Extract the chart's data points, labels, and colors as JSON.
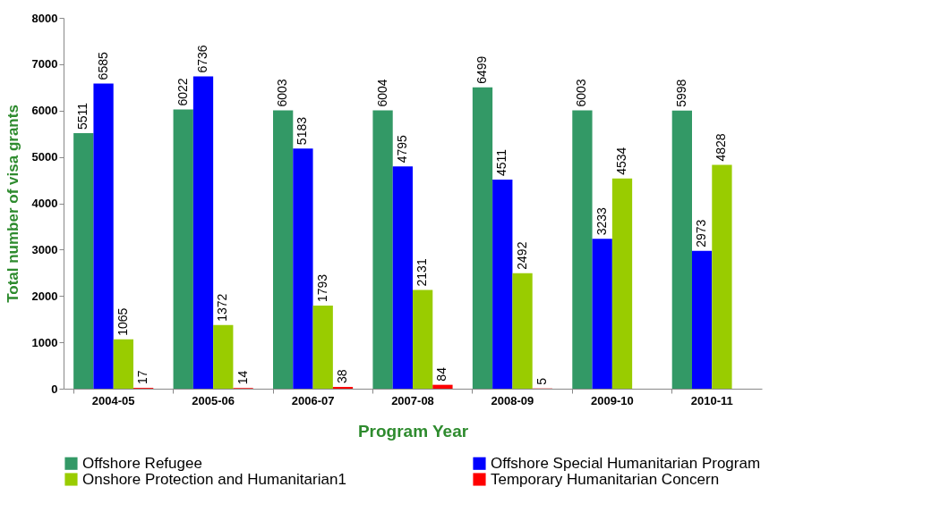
{
  "chart_data": {
    "type": "bar",
    "xlabel": "Program Year",
    "ylabel": "Total number of visa grants",
    "categories": [
      "2004-05",
      "2005-06",
      "2006-07",
      "2007-08",
      "2008-09",
      "2009-10",
      "2010-11"
    ],
    "series": [
      {
        "name": "Offshore Refugee",
        "color": "#339966",
        "values": [
          5511,
          6022,
          6003,
          6004,
          6499,
          6003,
          5998
        ]
      },
      {
        "name": "Offshore Special Humanitarian Program",
        "color": "#0000ff",
        "values": [
          6585,
          6736,
          5183,
          4795,
          4511,
          3233,
          2973
        ]
      },
      {
        "name": "Onshore Protection and Humanitarian1",
        "color": "#99cc00",
        "values": [
          1065,
          1372,
          1793,
          2131,
          2492,
          4534,
          4828
        ]
      },
      {
        "name": "Temporary Humanitarian Concern",
        "color": "#ff0000",
        "values": [
          17,
          14,
          38,
          84,
          5,
          null,
          null
        ]
      }
    ],
    "ylim": [
      0,
      8000
    ],
    "yticks": [
      0,
      1000,
      2000,
      3000,
      4000,
      5000,
      6000,
      7000,
      8000
    ],
    "grid": false,
    "legend": "bottom",
    "data_labels": true
  }
}
